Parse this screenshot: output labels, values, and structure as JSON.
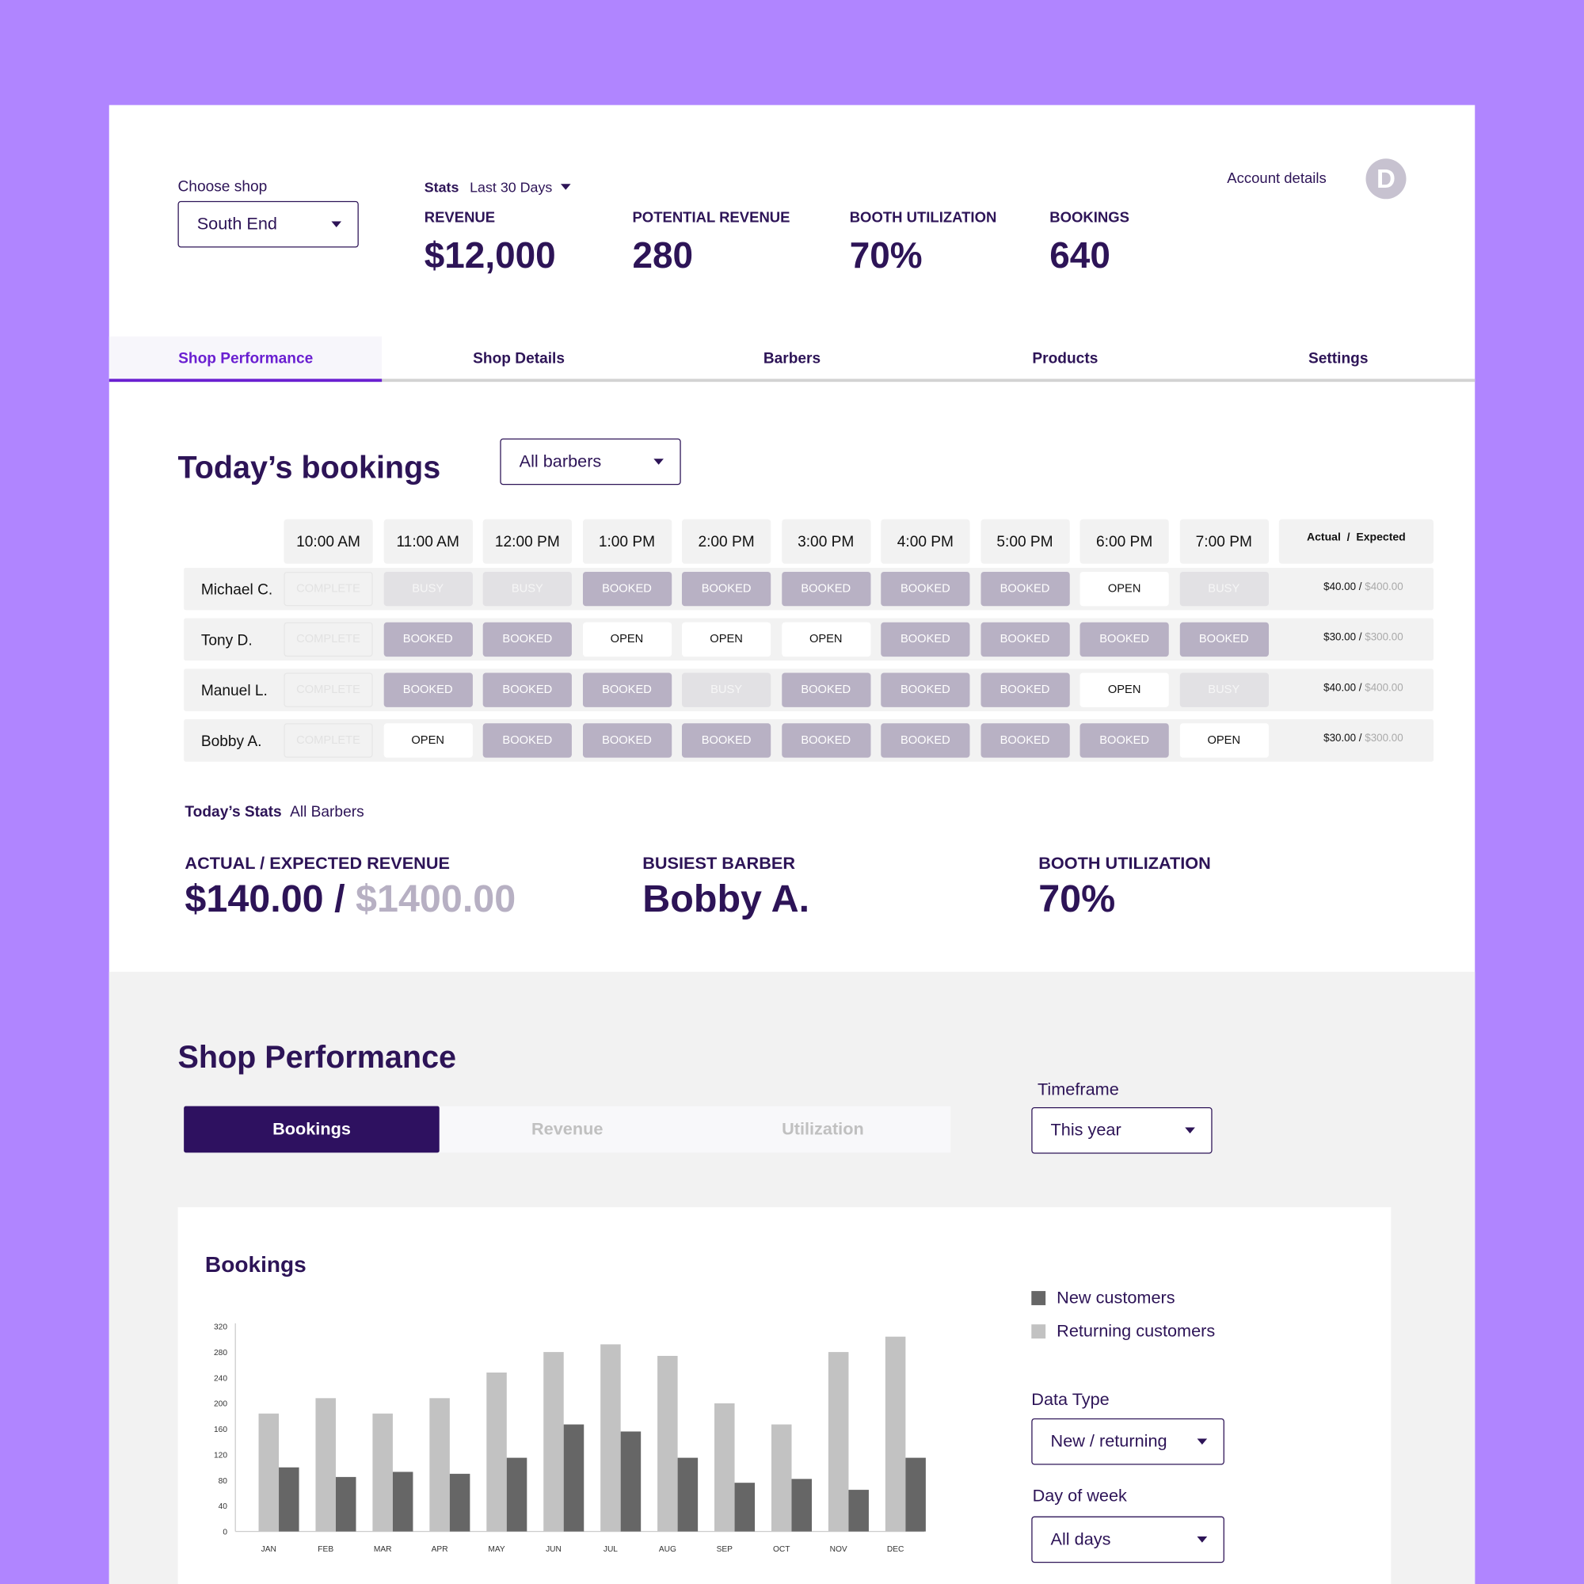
{
  "header": {
    "choose_shop_label": "Choose shop",
    "shop": "South End",
    "stats_label": "Stats",
    "stats_period": "Last 30 Days",
    "account": "Account details",
    "avatar": "D",
    "stats": [
      {
        "label": "REVENUE",
        "value": "$12,000"
      },
      {
        "label": "POTENTIAL REVENUE",
        "value": "280"
      },
      {
        "label": "BOOTH UTILIZATION",
        "value": "70%"
      },
      {
        "label": "BOOKINGS",
        "value": "640"
      }
    ]
  },
  "tabs": [
    "Shop Performance",
    "Shop Details",
    "Barbers",
    "Products",
    "Settings"
  ],
  "bookings": {
    "title": "Today’s bookings",
    "filter": "All barbers",
    "times": [
      "10:00 AM",
      "11:00 AM",
      "12:00 PM",
      "1:00 PM",
      "2:00 PM",
      "3:00 PM",
      "4:00 PM",
      "5:00 PM",
      "6:00 PM",
      "7:00 PM"
    ],
    "summary_header": "Actual  /  Expected",
    "rows": [
      {
        "name": "Michael C.",
        "actual": "$40.00 /",
        "expected": "$400.00",
        "slots": [
          {
            "label": "COMPLETE",
            "fill": "#f2f2f2",
            "ink": "#e2e2e2"
          },
          {
            "label": "BUSY",
            "fill": "#e2e1e4",
            "ink": "#f6f6f6"
          },
          {
            "label": "BUSY",
            "fill": "#e2e1e4",
            "ink": "#f6f6f6"
          },
          {
            "label": "BOOKED",
            "fill": "#b8b1c4",
            "ink": "#ffffff"
          },
          {
            "label": "BOOKED",
            "fill": "#b8b1c4",
            "ink": "#ffffff"
          },
          {
            "label": "BOOKED",
            "fill": "#b8b1c4",
            "ink": "#ffffff"
          },
          {
            "label": "BOOKED",
            "fill": "#b8b1c4",
            "ink": "#ffffff"
          },
          {
            "label": "BOOKED",
            "fill": "#b8b1c4",
            "ink": "#ffffff"
          },
          {
            "label": "OPEN",
            "fill": "#ffffff",
            "ink": "#111111"
          },
          {
            "label": "BUSY",
            "fill": "#e2e1e4",
            "ink": "#f6f6f6"
          }
        ]
      },
      {
        "name": "Tony D.",
        "actual": "$30.00 /",
        "expected": "$300.00",
        "slots": [
          {
            "label": "COMPLETE",
            "fill": "#f2f2f2",
            "ink": "#e2e2e2"
          },
          {
            "label": "BOOKED",
            "fill": "#b8b1c4",
            "ink": "#ffffff"
          },
          {
            "label": "BOOKED",
            "fill": "#b8b1c4",
            "ink": "#ffffff"
          },
          {
            "label": "OPEN",
            "fill": "#ffffff",
            "ink": "#111111"
          },
          {
            "label": "OPEN",
            "fill": "#ffffff",
            "ink": "#111111"
          },
          {
            "label": "OPEN",
            "fill": "#ffffff",
            "ink": "#111111"
          },
          {
            "label": "BOOKED",
            "fill": "#b8b1c4",
            "ink": "#ffffff"
          },
          {
            "label": "BOOKED",
            "fill": "#b8b1c4",
            "ink": "#ffffff"
          },
          {
            "label": "BOOKED",
            "fill": "#b8b1c4",
            "ink": "#ffffff"
          },
          {
            "label": "BOOKED",
            "fill": "#b8b1c4",
            "ink": "#ffffff"
          }
        ]
      },
      {
        "name": "Manuel L.",
        "actual": "$40.00 /",
        "expected": "$400.00",
        "slots": [
          {
            "label": "COMPLETE",
            "fill": "#f2f2f2",
            "ink": "#e2e2e2"
          },
          {
            "label": "BOOKED",
            "fill": "#b8b1c4",
            "ink": "#ffffff"
          },
          {
            "label": "BOOKED",
            "fill": "#b8b1c4",
            "ink": "#ffffff"
          },
          {
            "label": "BOOKED",
            "fill": "#b8b1c4",
            "ink": "#ffffff"
          },
          {
            "label": "BUSY",
            "fill": "#e2e1e4",
            "ink": "#f6f6f6"
          },
          {
            "label": "BOOKED",
            "fill": "#b8b1c4",
            "ink": "#ffffff"
          },
          {
            "label": "BOOKED",
            "fill": "#b8b1c4",
            "ink": "#ffffff"
          },
          {
            "label": "BOOKED",
            "fill": "#b8b1c4",
            "ink": "#ffffff"
          },
          {
            "label": "OPEN",
            "fill": "#ffffff",
            "ink": "#111111"
          },
          {
            "label": "BUSY",
            "fill": "#e2e1e4",
            "ink": "#f6f6f6"
          }
        ]
      },
      {
        "name": "Bobby A.",
        "actual": "$30.00 /",
        "expected": "$300.00",
        "slots": [
          {
            "label": "COMPLETE",
            "fill": "#f2f2f2",
            "ink": "#e2e2e2"
          },
          {
            "label": "OPEN",
            "fill": "#ffffff",
            "ink": "#111111"
          },
          {
            "label": "BOOKED",
            "fill": "#b8b1c4",
            "ink": "#ffffff"
          },
          {
            "label": "BOOKED",
            "fill": "#b8b1c4",
            "ink": "#ffffff"
          },
          {
            "label": "BOOKED",
            "fill": "#b8b1c4",
            "ink": "#ffffff"
          },
          {
            "label": "BOOKED",
            "fill": "#b8b1c4",
            "ink": "#ffffff"
          },
          {
            "label": "BOOKED",
            "fill": "#b8b1c4",
            "ink": "#ffffff"
          },
          {
            "label": "BOOKED",
            "fill": "#b8b1c4",
            "ink": "#ffffff"
          },
          {
            "label": "BOOKED",
            "fill": "#b8b1c4",
            "ink": "#ffffff"
          },
          {
            "label": "OPEN",
            "fill": "#ffffff",
            "ink": "#111111"
          }
        ]
      }
    ]
  },
  "today_stats": {
    "title": "Today’s Stats",
    "scope": "All Barbers",
    "revenue_label": "ACTUAL / EXPECTED REVENUE",
    "revenue_actual": "$140.00 /",
    "revenue_expected": "$1400.00",
    "busiest_label": "BUSIEST BARBER",
    "busiest": "Bobby A.",
    "utilization_label": "BOOTH UTILIZATION",
    "utilization": "70%"
  },
  "performance": {
    "title": "Shop Performance",
    "segments": [
      "Bookings",
      "Revenue",
      "Utilization"
    ],
    "timeframe_label": "Timeframe",
    "timeframe": "This year",
    "data_type_label": "Data Type",
    "data_type": "New / returning",
    "day_label": "Day of week",
    "day": "All days"
  },
  "chart_data": {
    "type": "bar",
    "title": "Bookings",
    "categories": [
      "JAN",
      "FEB",
      "MAR",
      "APR",
      "MAY",
      "JUN",
      "JUL",
      "AUG",
      "SEP",
      "OCT",
      "NOV",
      "DEC"
    ],
    "series": [
      {
        "name": "New customers",
        "color": "#666666",
        "values": [
          100,
          85,
          93,
          90,
          115,
          167,
          156,
          115,
          76,
          82,
          65,
          115
        ]
      },
      {
        "name": "Returning customers",
        "color": "#c2c2c2",
        "values": [
          184,
          208,
          184,
          208,
          248,
          280,
          292,
          274,
          200,
          167,
          280,
          304
        ]
      }
    ],
    "ylim": [
      0,
      320
    ],
    "yticks": [
      0,
      40,
      80,
      120,
      160,
      200,
      240,
      280,
      320
    ],
    "grid": false
  }
}
